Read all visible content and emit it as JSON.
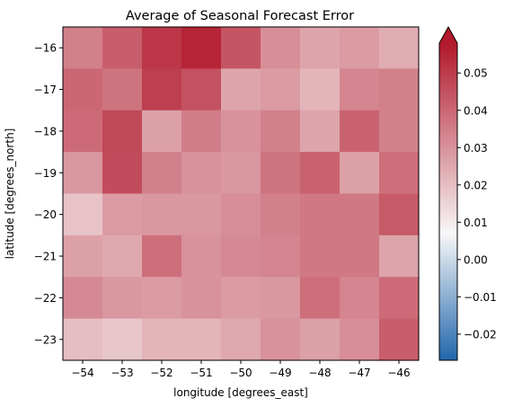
{
  "chart_data": {
    "type": "heatmap",
    "title": "Average of Seasonal Forecast Error",
    "xlabel": "longitude [degrees_east]",
    "ylabel": "latitude [degrees_north]",
    "x": [
      -54,
      -53,
      -52,
      -51,
      -50,
      -49,
      -48,
      -47,
      -46
    ],
    "y": [
      -16,
      -17,
      -18,
      -19,
      -20,
      -21,
      -22,
      -23
    ],
    "xlim": [
      -54.5,
      -45.5
    ],
    "ylim": [
      -23.5,
      -15.5
    ],
    "x_ticks": [
      "−54",
      "−53",
      "−52",
      "−51",
      "−50",
      "−49",
      "−48",
      "−47",
      "−46"
    ],
    "y_ticks": [
      "−16",
      "−17",
      "−18",
      "−19",
      "−20",
      "−21",
      "−22",
      "−23"
    ],
    "values": [
      [
        0.034,
        0.042,
        0.051,
        0.055,
        0.044,
        0.031,
        0.026,
        0.028,
        0.024
      ],
      [
        0.04,
        0.037,
        0.049,
        0.045,
        0.026,
        0.028,
        0.022,
        0.033,
        0.034
      ],
      [
        0.039,
        0.047,
        0.027,
        0.035,
        0.03,
        0.034,
        0.026,
        0.041,
        0.034
      ],
      [
        0.029,
        0.046,
        0.034,
        0.03,
        0.029,
        0.037,
        0.041,
        0.027,
        0.038
      ],
      [
        0.019,
        0.028,
        0.029,
        0.029,
        0.031,
        0.034,
        0.036,
        0.036,
        0.043
      ],
      [
        0.027,
        0.025,
        0.038,
        0.03,
        0.032,
        0.033,
        0.036,
        0.036,
        0.026
      ],
      [
        0.032,
        0.029,
        0.028,
        0.03,
        0.028,
        0.029,
        0.038,
        0.033,
        0.039
      ],
      [
        0.02,
        0.018,
        0.022,
        0.022,
        0.025,
        0.03,
        0.027,
        0.031,
        0.042
      ]
    ],
    "colorbar": {
      "vmin": -0.027,
      "vmax": 0.058,
      "extend": "max",
      "ticks": [
        -0.02,
        -0.01,
        0.0,
        0.01,
        0.02,
        0.03,
        0.04,
        0.05
      ],
      "tick_labels": [
        "−0.02",
        "−0.01",
        "0.00",
        "0.01",
        "0.02",
        "0.03",
        "0.04",
        "0.05"
      ],
      "colormap": [
        "#2166ac",
        "#f7f7f7",
        "#b2182b"
      ]
    },
    "grid": false,
    "legend": "none"
  }
}
